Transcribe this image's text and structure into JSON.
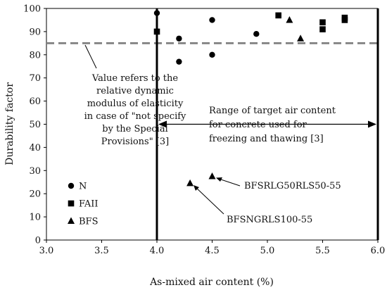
{
  "chart_data": {
    "type": "scatter",
    "xlabel": "As-mixed air content (%)",
    "ylabel": "Durability factor",
    "xlim": [
      3.0,
      6.0
    ],
    "ylim": [
      0,
      100
    ],
    "x_ticks": [
      "3.0",
      "3.5",
      "4.0",
      "4.5",
      "5.0",
      "5.5",
      "6.0"
    ],
    "y_ticks": [
      "0",
      "10",
      "20",
      "30",
      "40",
      "50",
      "60",
      "70",
      "80",
      "90",
      "100"
    ],
    "grid": false,
    "legend_position": "bottom-left",
    "series": [
      {
        "name": "N",
        "marker": "circle",
        "points": [
          [
            4.0,
            98
          ],
          [
            4.2,
            87
          ],
          [
            4.2,
            77
          ],
          [
            4.5,
            95
          ],
          [
            4.5,
            80
          ],
          [
            4.9,
            89
          ]
        ]
      },
      {
        "name": "FAII",
        "marker": "square",
        "points": [
          [
            4.0,
            90
          ],
          [
            5.1,
            97
          ],
          [
            5.5,
            94
          ],
          [
            5.5,
            91
          ],
          [
            5.7,
            96
          ],
          [
            5.7,
            95
          ]
        ]
      },
      {
        "name": "BFS",
        "marker": "triangle",
        "points": [
          [
            5.2,
            95
          ],
          [
            5.3,
            87
          ],
          [
            4.3,
            24.5
          ],
          [
            4.5,
            27.5
          ]
        ]
      }
    ],
    "reference_line": {
      "y": 85,
      "style": "dashed",
      "color": "#808080"
    },
    "range": {
      "x_from": 4.0,
      "x_to": 6.0
    },
    "annotations": {
      "reference_note": [
        "Value refers to the",
        "relative dynamic",
        "modulus of elasticity",
        "in case of \"not specify",
        "by the Special",
        "Provisions\" [3]"
      ],
      "range_note": [
        "Range of target  air content",
        "for concrete used for",
        "freezing and thawing [3]"
      ],
      "label_upper": "BFSRLG50RLS50-55",
      "label_lower": "BFSNGRLS100-55"
    }
  }
}
